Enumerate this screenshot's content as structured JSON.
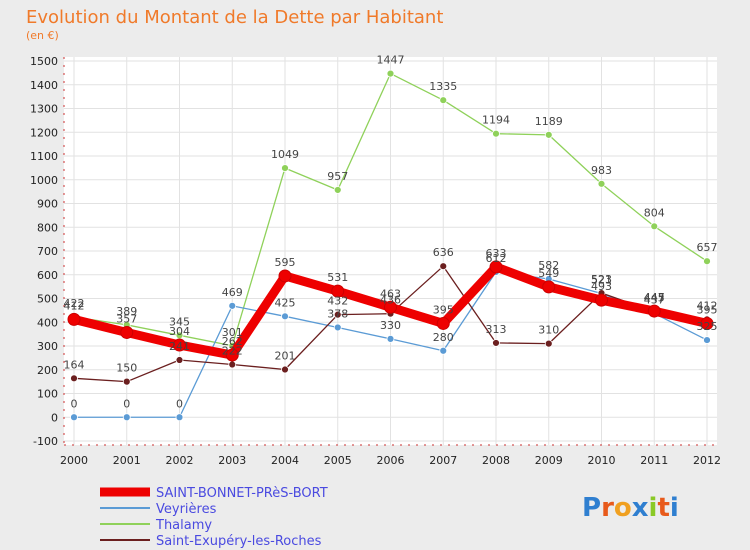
{
  "chart_data": {
    "type": "line",
    "title": "Evolution du Montant de la Dette par Habitant",
    "subtitle": "(en €)",
    "xlabel": "",
    "ylabel": "",
    "categories": [
      "2000",
      "2001",
      "2002",
      "2003",
      "2004",
      "2005",
      "2006",
      "2007",
      "2008",
      "2009",
      "2010",
      "2011",
      "2012"
    ],
    "ylim": [
      -100,
      1500
    ],
    "yticks": [
      -100,
      0,
      100,
      200,
      300,
      400,
      500,
      600,
      700,
      800,
      900,
      1000,
      1100,
      1200,
      1300,
      1400,
      1500
    ],
    "grid": true,
    "legend_position": "bottom-left",
    "series": [
      {
        "name": "SAINT-BONNET-PRèS-BORT",
        "color": "#ee0000",
        "values": [
          412,
          357,
          304,
          262,
          595,
          531,
          463,
          395,
          633,
          549,
          493,
          447,
          395
        ]
      },
      {
        "name": "Veyrières",
        "color": "#5b9bd5",
        "values": [
          0,
          0,
          0,
          469,
          425,
          378,
          330,
          280,
          612,
          582,
          521,
          437,
          325
        ]
      },
      {
        "name": "Thalamy",
        "color": "#8fd15a",
        "values": [
          422,
          389,
          345,
          301,
          1049,
          957,
          1447,
          1335,
          1194,
          1189,
          983,
          804,
          657
        ]
      },
      {
        "name": "Saint-Exupéry-les-Roches",
        "color": "#6b1f1f",
        "values": [
          164,
          150,
          241,
          222,
          201,
          432,
          436,
          636,
          313,
          310,
          523,
          445,
          412
        ]
      }
    ]
  },
  "logo": {
    "text": "Proxiti"
  }
}
